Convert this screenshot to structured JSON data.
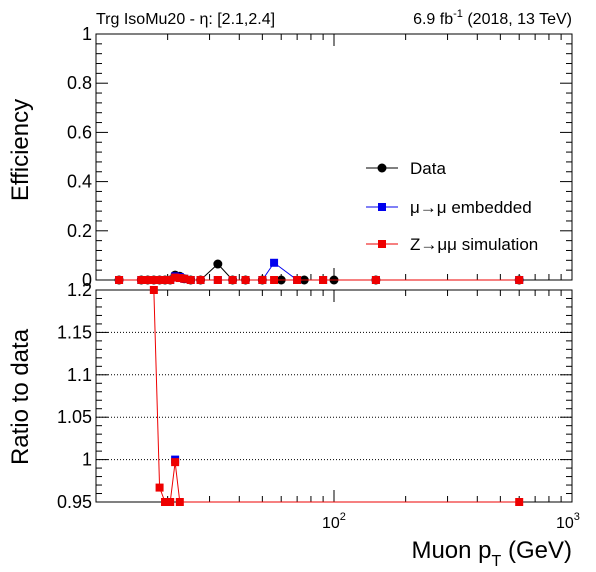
{
  "header": {
    "left": "Trg IsoMu20 - η: [2.1,2.4]",
    "lumi": "6.9 fb",
    "lumi_exp": "-1",
    "lumi_rest": " (2018, 13 TeV)"
  },
  "colors": {
    "data": "#000000",
    "embedded": "#0000ee",
    "simulation": "#ee0000",
    "grid": "#000000"
  },
  "chart_data": [
    {
      "type": "line",
      "panel": "efficiency",
      "ylabel": "Efficiency",
      "xscale": "log",
      "xlim": [
        10,
        1000
      ],
      "ylim": [
        0,
        1
      ],
      "yticks": [
        "0",
        "0.2",
        "0.4",
        "0.6",
        "0.8",
        "1"
      ],
      "legend_position": "right",
      "series": [
        {
          "name": "Data",
          "marker": "circle",
          "points": [
            [
              12.5,
              0
            ],
            [
              15.5,
              0
            ],
            [
              16.5,
              0
            ],
            [
              17.5,
              0
            ],
            [
              18.5,
              0
            ],
            [
              19.5,
              0
            ],
            [
              20.5,
              0
            ],
            [
              21.5,
              0.02
            ],
            [
              22.5,
              0.015
            ],
            [
              23.5,
              0.005
            ],
            [
              25,
              0
            ],
            [
              27.5,
              0
            ],
            [
              32.5,
              0.065
            ],
            [
              37.5,
              0
            ],
            [
              42.5,
              0
            ],
            [
              50,
              0
            ],
            [
              60,
              0
            ],
            [
              75,
              0
            ],
            [
              100,
              0
            ],
            [
              150,
              0
            ],
            [
              600,
              0
            ]
          ]
        },
        {
          "name": "μ→μ embedded",
          "marker": "square",
          "points": [
            [
              12.5,
              0
            ],
            [
              15.5,
              0
            ],
            [
              16.5,
              0
            ],
            [
              17.5,
              0
            ],
            [
              18.5,
              0
            ],
            [
              19.5,
              0
            ],
            [
              20.5,
              0
            ],
            [
              21.5,
              0.015
            ],
            [
              22.5,
              0.012
            ],
            [
              23.5,
              0.005
            ],
            [
              25,
              0
            ],
            [
              27.5,
              0
            ],
            [
              32.5,
              0
            ],
            [
              37.5,
              0
            ],
            [
              42.5,
              0
            ],
            [
              50,
              0
            ],
            [
              56,
              0.07
            ],
            [
              70,
              0
            ],
            [
              90,
              0
            ],
            [
              150,
              0
            ],
            [
              600,
              0
            ]
          ]
        },
        {
          "name": "Z→μμ simulation",
          "marker": "square",
          "points": [
            [
              12.5,
              0
            ],
            [
              15.5,
              0
            ],
            [
              16.5,
              0
            ],
            [
              17.5,
              0
            ],
            [
              18.5,
              0
            ],
            [
              19.5,
              0
            ],
            [
              20.5,
              0
            ],
            [
              21.5,
              0.01
            ],
            [
              22.5,
              0.008
            ],
            [
              23.5,
              0.005
            ],
            [
              25,
              0
            ],
            [
              27.5,
              0
            ],
            [
              32.5,
              0
            ],
            [
              37.5,
              0
            ],
            [
              42.5,
              0
            ],
            [
              50,
              0
            ],
            [
              56,
              0
            ],
            [
              70,
              0
            ],
            [
              90,
              0
            ],
            [
              150,
              0
            ],
            [
              600,
              0
            ]
          ]
        }
      ]
    },
    {
      "type": "line",
      "panel": "ratio",
      "ylabel": "Ratio to data",
      "xlabel": "Muon p",
      "xlabel_sub": "T",
      "xlabel_unit": " (GeV)",
      "xscale": "log",
      "xlim": [
        10,
        1000
      ],
      "xtick_labels": [
        "10",
        "2",
        "10",
        "3"
      ],
      "ylim": [
        0.95,
        1.2
      ],
      "yticks": [
        "0.95",
        "1",
        "1.05",
        "1.1",
        "1.15",
        "1.2"
      ],
      "grid": true,
      "series": [
        {
          "name": "μ→μ embedded",
          "marker": "square",
          "points": [
            [
              21.5,
              1.0
            ]
          ]
        },
        {
          "name": "Z→μμ simulation",
          "marker": "square",
          "points": [
            [
              17.5,
              1.2
            ],
            [
              18.5,
              0.967
            ],
            [
              19.5,
              0.95
            ],
            [
              20.5,
              0.95
            ],
            [
              21.5,
              0.997
            ],
            [
              22.5,
              0.95
            ],
            [
              600,
              0.95
            ]
          ]
        }
      ]
    }
  ]
}
